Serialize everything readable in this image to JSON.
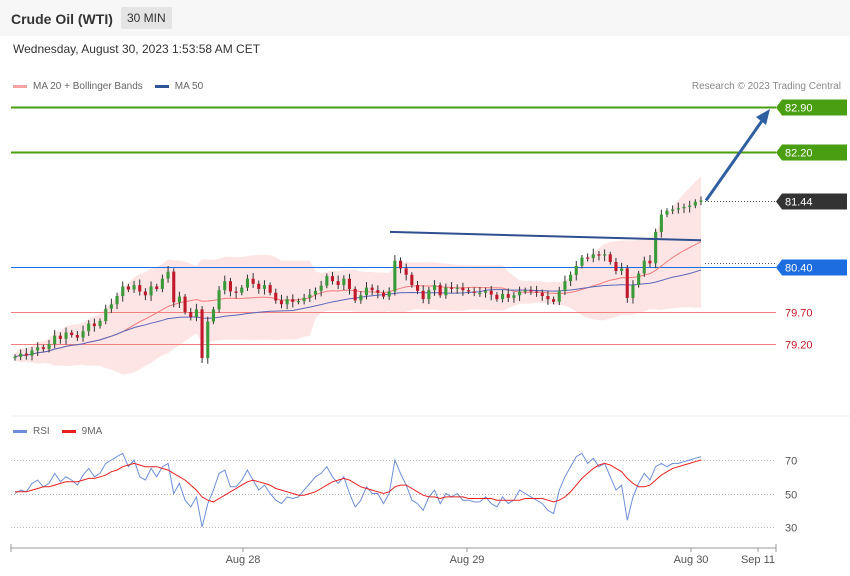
{
  "header": {
    "instrument": "Crude Oil (WTI)",
    "timeframe": "30 MIN"
  },
  "datetime": "Wednesday, August 30, 2023 1:53:58 AM CET",
  "credit": "Research © 2023 Trading Central",
  "colors": {
    "up": "#3a9a3a",
    "down": "#c0192c",
    "ma20": "#f27b7b",
    "bands": "#fcdcdc",
    "ma50": "#5a67b8",
    "resistance": "#4a9e11",
    "pivot": "#1e6de0",
    "support": "#f08080",
    "last": "#333333",
    "arrow": "#2f5f9f",
    "rsi": "#6e8fd8",
    "rsi_ma": "#e82020"
  },
  "chart_data": [
    {
      "type": "candlestick",
      "title": "Crude Oil (WTI)",
      "timeframe": "30 MIN",
      "legend": [
        "MA 20 + Bollinger Bands",
        "MA 50"
      ],
      "x_ticks": [
        "Aug 28",
        "Aug 29",
        "Aug 30",
        "Sep 11"
      ],
      "ylim": [
        78.6,
        83.0
      ],
      "levels": [
        {
          "label": "82.90",
          "value": 82.9,
          "kind": "resistance"
        },
        {
          "label": "82.20",
          "value": 82.2,
          "kind": "resistance"
        },
        {
          "label": "81.44",
          "value": 81.44,
          "kind": "last"
        },
        {
          "label": "80.40",
          "value": 80.4,
          "kind": "pivot"
        },
        {
          "label": "79.70",
          "value": 79.7,
          "kind": "support"
        },
        {
          "label": "79.20",
          "value": 79.2,
          "kind": "support"
        }
      ],
      "closes": [
        79.0,
        79.05,
        79.02,
        79.1,
        79.15,
        79.12,
        79.2,
        79.33,
        79.28,
        79.38,
        79.34,
        79.3,
        79.4,
        79.52,
        79.48,
        79.56,
        79.75,
        79.82,
        79.95,
        80.1,
        80.05,
        80.12,
        80.02,
        79.96,
        80.1,
        80.06,
        80.22,
        80.33,
        79.85,
        79.94,
        79.7,
        79.62,
        79.74,
        78.98,
        79.55,
        79.74,
        80.04,
        80.18,
        80.02,
        80.0,
        80.08,
        80.22,
        80.14,
        80.06,
        80.12,
        80.0,
        79.88,
        79.82,
        79.9,
        79.86,
        79.87,
        79.92,
        79.97,
        80.03,
        80.11,
        80.26,
        80.18,
        80.12,
        80.22,
        80.06,
        79.88,
        79.96,
        80.08,
        80.04,
        80.0,
        79.94,
        80.02,
        80.5,
        80.38,
        80.28,
        80.12,
        80.03,
        79.9,
        80.04,
        80.12,
        79.96,
        80.08,
        80.06,
        80.08,
        80.04,
        80.02,
        80.0,
        80.0,
        80.03,
        79.97,
        79.9,
        79.98,
        79.92,
        79.96,
        80.02,
        80.04,
        80.02,
        80.0,
        79.95,
        79.9,
        79.86,
        80.03,
        80.18,
        80.28,
        80.42,
        80.55,
        80.54,
        80.6,
        80.58,
        80.6,
        80.48,
        80.34,
        80.38,
        79.92,
        80.12,
        80.3,
        80.5,
        80.46,
        80.95,
        81.22,
        81.28,
        81.3,
        81.32,
        81.34,
        81.36,
        81.42,
        81.44
      ],
      "rsi": {
        "legend": [
          "RSI",
          "9MA"
        ],
        "ylim": [
          25,
          80
        ],
        "levels": [
          70,
          50,
          30
        ],
        "values": [
          50,
          52,
          51,
          56,
          58,
          54,
          56,
          62,
          57,
          60,
          58,
          55,
          61,
          65,
          60,
          62,
          68,
          70,
          72,
          74,
          66,
          70,
          60,
          58,
          65,
          60,
          66,
          68,
          50,
          56,
          46,
          42,
          48,
          30,
          44,
          52,
          62,
          64,
          54,
          54,
          58,
          64,
          58,
          52,
          55,
          50,
          46,
          44,
          48,
          47,
          48,
          52,
          56,
          60,
          62,
          66,
          60,
          56,
          60,
          50,
          42,
          46,
          54,
          50,
          50,
          44,
          50,
          70,
          62,
          55,
          46,
          44,
          40,
          48,
          52,
          44,
          50,
          48,
          50,
          46,
          46,
          45,
          45,
          48,
          44,
          42,
          48,
          44,
          46,
          52,
          50,
          48,
          46,
          44,
          40,
          38,
          52,
          60,
          66,
          72,
          74,
          68,
          71,
          66,
          68,
          60,
          52,
          55,
          34,
          48,
          56,
          62,
          58,
          66,
          68,
          66,
          68,
          68,
          69,
          70,
          71,
          72
        ],
        "ma_values": [
          51,
          51,
          51,
          52,
          53,
          54,
          54,
          55,
          56,
          57,
          57,
          57,
          58,
          59,
          59,
          60,
          61,
          63,
          64,
          66,
          67,
          68,
          67,
          66,
          66,
          66,
          65,
          64,
          62,
          60,
          58,
          55,
          52,
          48,
          46,
          45,
          47,
          49,
          51,
          53,
          55,
          57,
          58,
          57,
          56,
          55,
          53,
          52,
          51,
          50,
          49,
          49,
          50,
          51,
          53,
          55,
          57,
          58,
          59,
          58,
          56,
          54,
          53,
          52,
          51,
          50,
          51,
          54,
          55,
          55,
          53,
          51,
          49,
          48,
          48,
          47,
          48,
          48,
          48,
          48,
          47,
          47,
          47,
          47,
          47,
          46,
          46,
          46,
          46,
          46,
          47,
          47,
          47,
          47,
          46,
          45,
          46,
          48,
          51,
          55,
          59,
          62,
          65,
          67,
          68,
          67,
          65,
          63,
          59,
          56,
          54,
          54,
          55,
          58,
          61,
          63,
          65,
          66,
          67,
          68,
          69,
          70
        ]
      }
    }
  ]
}
